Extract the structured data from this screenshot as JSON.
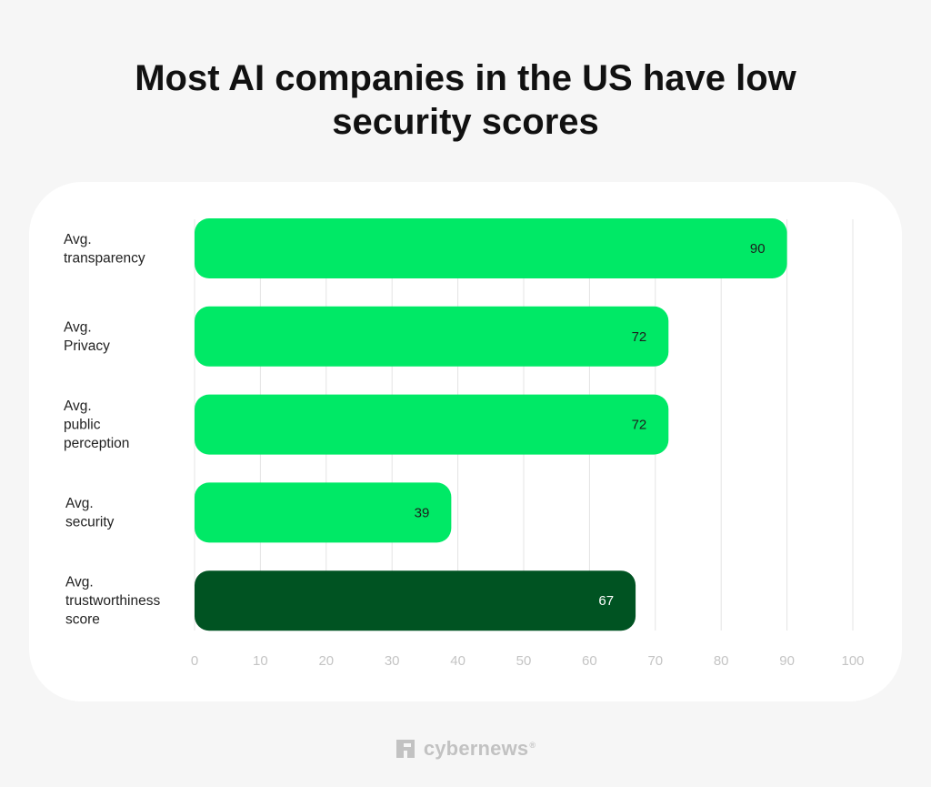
{
  "chart_data": {
    "type": "bar",
    "orientation": "horizontal",
    "title": "Most AI companies in the US have low security scores",
    "categories": [
      [
        "Avg.",
        "transparency"
      ],
      [
        "Avg.",
        "Privacy"
      ],
      [
        "Avg.",
        "public",
        "perception"
      ],
      [
        "Avg.",
        "security"
      ],
      [
        "Avg.",
        "trustworthiness",
        "score"
      ]
    ],
    "values": [
      90,
      72,
      72,
      39,
      67
    ],
    "value_labels": [
      "90",
      "72",
      "72",
      "39",
      "67"
    ],
    "bar_colors": [
      "#00e966",
      "#00e966",
      "#00e966",
      "#00e966",
      "#005322"
    ],
    "xlim": [
      0,
      100
    ],
    "x_ticks": [
      "0",
      "10",
      "20",
      "30",
      "40",
      "50",
      "60",
      "70",
      "80",
      "90",
      "100"
    ],
    "grid": true,
    "xlabel": "",
    "ylabel": ""
  },
  "colors": {
    "accent": "#00e966",
    "highlight": "#005322",
    "background": "#f6f6f6",
    "card": "#ffffff"
  },
  "footer": {
    "logo_text": "cybernews",
    "logo_mark": "®",
    "logo_icon": "cybernews-logo-icon"
  }
}
